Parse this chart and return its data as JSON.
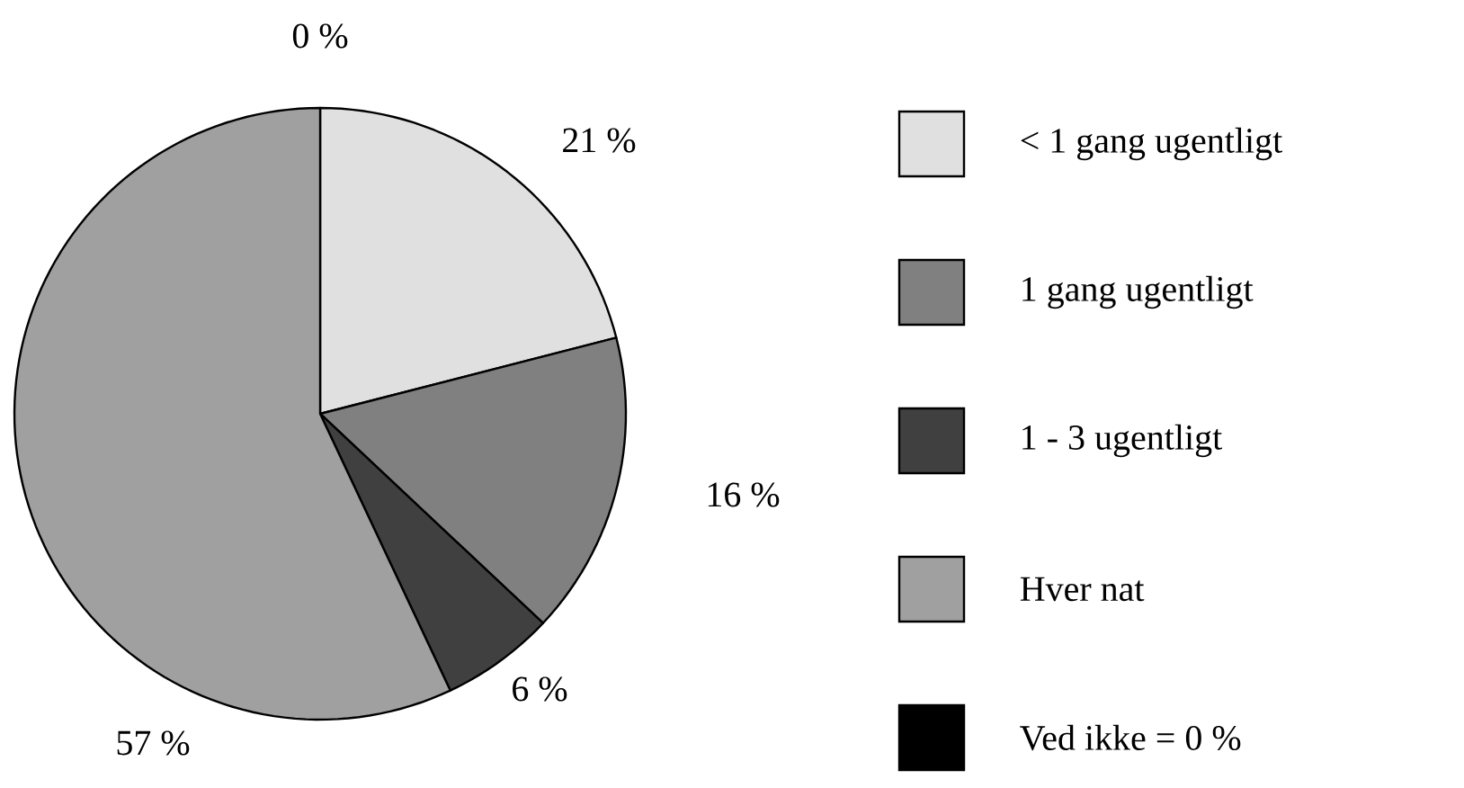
{
  "chart_data": {
    "type": "pie",
    "categories": [
      "< 1 gang ugentligt",
      "1 gang ugentligt",
      "1 - 3 ugentligt",
      "Hver nat",
      "Ved ikke = 0 %"
    ],
    "values": [
      21,
      16,
      6,
      57,
      0
    ],
    "value_labels": [
      "21 %",
      "16 %",
      "6 %",
      "57 %",
      "0 %"
    ],
    "colors": [
      "#e0e0e0",
      "#808080",
      "#404040",
      "#a0a0a0",
      "#000000"
    ],
    "legend": "right"
  }
}
